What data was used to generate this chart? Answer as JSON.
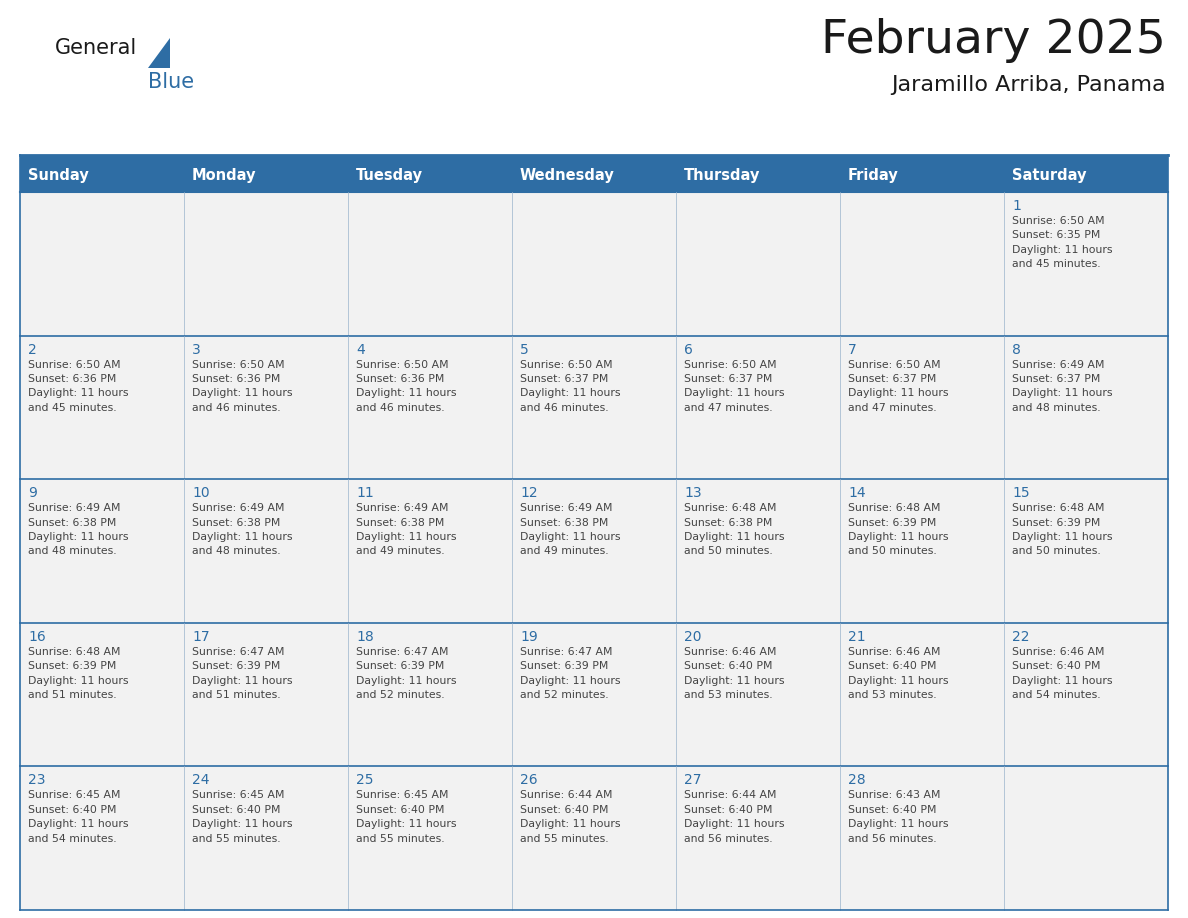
{
  "title": "February 2025",
  "subtitle": "Jaramillo Arriba, Panama",
  "days_of_week": [
    "Sunday",
    "Monday",
    "Tuesday",
    "Wednesday",
    "Thursday",
    "Friday",
    "Saturday"
  ],
  "header_bg": "#2E6DA4",
  "header_text": "#FFFFFF",
  "cell_bg": "#F2F2F2",
  "border_color": "#2E6DA4",
  "cell_border_color": "#9AB3CC",
  "text_color": "#444444",
  "day_num_color": "#2E6DA4",
  "title_color": "#1a1a1a",
  "logo_color1": "#1a1a1a",
  "logo_color2": "#2E6DA4",
  "logo_triangle_color": "#2E6DA4",
  "calendar_data": [
    [
      null,
      null,
      null,
      null,
      null,
      null,
      {
        "day": 1,
        "sunrise": "6:50 AM",
        "sunset": "6:35 PM",
        "daylight": "11 hours and 45 minutes."
      }
    ],
    [
      {
        "day": 2,
        "sunrise": "6:50 AM",
        "sunset": "6:36 PM",
        "daylight": "11 hours and 45 minutes."
      },
      {
        "day": 3,
        "sunrise": "6:50 AM",
        "sunset": "6:36 PM",
        "daylight": "11 hours and 46 minutes."
      },
      {
        "day": 4,
        "sunrise": "6:50 AM",
        "sunset": "6:36 PM",
        "daylight": "11 hours and 46 minutes."
      },
      {
        "day": 5,
        "sunrise": "6:50 AM",
        "sunset": "6:37 PM",
        "daylight": "11 hours and 46 minutes."
      },
      {
        "day": 6,
        "sunrise": "6:50 AM",
        "sunset": "6:37 PM",
        "daylight": "11 hours and 47 minutes."
      },
      {
        "day": 7,
        "sunrise": "6:50 AM",
        "sunset": "6:37 PM",
        "daylight": "11 hours and 47 minutes."
      },
      {
        "day": 8,
        "sunrise": "6:49 AM",
        "sunset": "6:37 PM",
        "daylight": "11 hours and 48 minutes."
      }
    ],
    [
      {
        "day": 9,
        "sunrise": "6:49 AM",
        "sunset": "6:38 PM",
        "daylight": "11 hours and 48 minutes."
      },
      {
        "day": 10,
        "sunrise": "6:49 AM",
        "sunset": "6:38 PM",
        "daylight": "11 hours and 48 minutes."
      },
      {
        "day": 11,
        "sunrise": "6:49 AM",
        "sunset": "6:38 PM",
        "daylight": "11 hours and 49 minutes."
      },
      {
        "day": 12,
        "sunrise": "6:49 AM",
        "sunset": "6:38 PM",
        "daylight": "11 hours and 49 minutes."
      },
      {
        "day": 13,
        "sunrise": "6:48 AM",
        "sunset": "6:38 PM",
        "daylight": "11 hours and 50 minutes."
      },
      {
        "day": 14,
        "sunrise": "6:48 AM",
        "sunset": "6:39 PM",
        "daylight": "11 hours and 50 minutes."
      },
      {
        "day": 15,
        "sunrise": "6:48 AM",
        "sunset": "6:39 PM",
        "daylight": "11 hours and 50 minutes."
      }
    ],
    [
      {
        "day": 16,
        "sunrise": "6:48 AM",
        "sunset": "6:39 PM",
        "daylight": "11 hours and 51 minutes."
      },
      {
        "day": 17,
        "sunrise": "6:47 AM",
        "sunset": "6:39 PM",
        "daylight": "11 hours and 51 minutes."
      },
      {
        "day": 18,
        "sunrise": "6:47 AM",
        "sunset": "6:39 PM",
        "daylight": "11 hours and 52 minutes."
      },
      {
        "day": 19,
        "sunrise": "6:47 AM",
        "sunset": "6:39 PM",
        "daylight": "11 hours and 52 minutes."
      },
      {
        "day": 20,
        "sunrise": "6:46 AM",
        "sunset": "6:40 PM",
        "daylight": "11 hours and 53 minutes."
      },
      {
        "day": 21,
        "sunrise": "6:46 AM",
        "sunset": "6:40 PM",
        "daylight": "11 hours and 53 minutes."
      },
      {
        "day": 22,
        "sunrise": "6:46 AM",
        "sunset": "6:40 PM",
        "daylight": "11 hours and 54 minutes."
      }
    ],
    [
      {
        "day": 23,
        "sunrise": "6:45 AM",
        "sunset": "6:40 PM",
        "daylight": "11 hours and 54 minutes."
      },
      {
        "day": 24,
        "sunrise": "6:45 AM",
        "sunset": "6:40 PM",
        "daylight": "11 hours and 55 minutes."
      },
      {
        "day": 25,
        "sunrise": "6:45 AM",
        "sunset": "6:40 PM",
        "daylight": "11 hours and 55 minutes."
      },
      {
        "day": 26,
        "sunrise": "6:44 AM",
        "sunset": "6:40 PM",
        "daylight": "11 hours and 55 minutes."
      },
      {
        "day": 27,
        "sunrise": "6:44 AM",
        "sunset": "6:40 PM",
        "daylight": "11 hours and 56 minutes."
      },
      {
        "day": 28,
        "sunrise": "6:43 AM",
        "sunset": "6:40 PM",
        "daylight": "11 hours and 56 minutes."
      },
      null
    ]
  ]
}
